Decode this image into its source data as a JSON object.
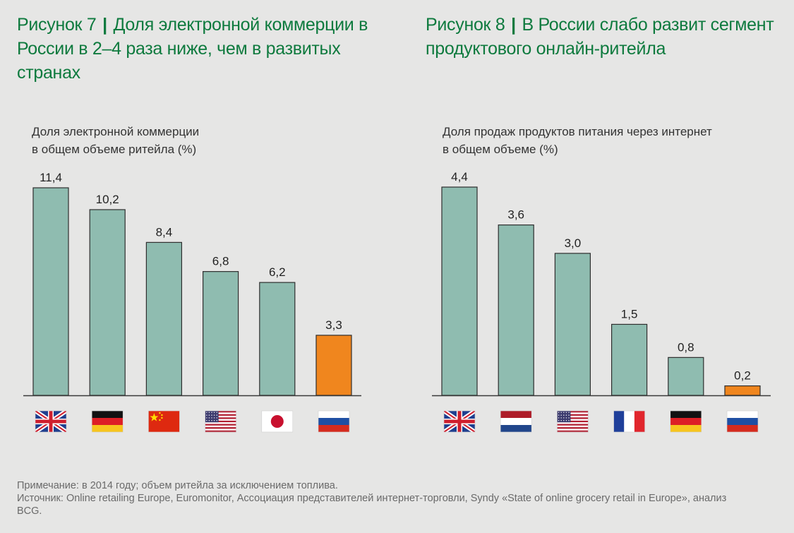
{
  "figures": {
    "left": {
      "number": "Рисунок 7",
      "separator": "|",
      "title": "Доля электронной коммерции в России в 2–4 раза ниже, чем в развитых странах",
      "subtitle_line1": "Доля электронной коммерции",
      "subtitle_line2": "в общем объеме ритейла (%)"
    },
    "right": {
      "number": "Рисунок 8",
      "separator": "|",
      "title": "В России слабо развит сегмент продуктового онлайн-ритейла",
      "subtitle_line1": "Доля продаж продуктов питания через интернет",
      "subtitle_line2": "в общем объеме (%)"
    }
  },
  "colors": {
    "title": "#0e7a3e",
    "bar": "#8fbcb0",
    "bar_highlight": "#f0861e",
    "bar_stroke": "#2e2e2e",
    "background": "#e6e6e5"
  },
  "chart_data": [
    {
      "type": "bar",
      "categories": [
        "uk-flag",
        "germany-flag",
        "china-flag",
        "usa-flag",
        "japan-flag",
        "russia-flag"
      ],
      "values": [
        11.4,
        10.2,
        8.4,
        6.8,
        6.2,
        3.3
      ],
      "value_labels": [
        "11,4",
        "10,2",
        "8,4",
        "6,8",
        "6,2",
        "3,3"
      ],
      "highlight_index": 5,
      "ylim": [
        0,
        11.4
      ],
      "grid": false,
      "title": "Доля электронной коммерции в России в 2–4 раза ниже, чем в развитых странах",
      "ylabel": "Доля электронной коммерции в общем объеме ритейла (%)"
    },
    {
      "type": "bar",
      "categories": [
        "uk-flag",
        "netherlands-flag",
        "usa-flag",
        "france-flag",
        "germany-flag",
        "russia-flag"
      ],
      "values": [
        4.4,
        3.6,
        3.0,
        1.5,
        0.8,
        0.2
      ],
      "value_labels": [
        "4,4",
        "3,6",
        "3,0",
        "1,5",
        "0,8",
        "0,2"
      ],
      "highlight_index": 5,
      "ylim": [
        0,
        4.4
      ],
      "grid": false,
      "title": "В России слабо развит сегмент продуктового онлайн-ритейла",
      "ylabel": "Доля продаж продуктов питания через интернет в общем объеме (%)"
    }
  ],
  "footer": {
    "note": "Примечание: в 2014 году; объем ритейла за исключением топлива.",
    "source": "Источник: Online retailing Europe, Euromonitor, Ассоциация представителей интернет-торговли, Syndy «State of online grocery retail in Europe», анализ BCG."
  }
}
